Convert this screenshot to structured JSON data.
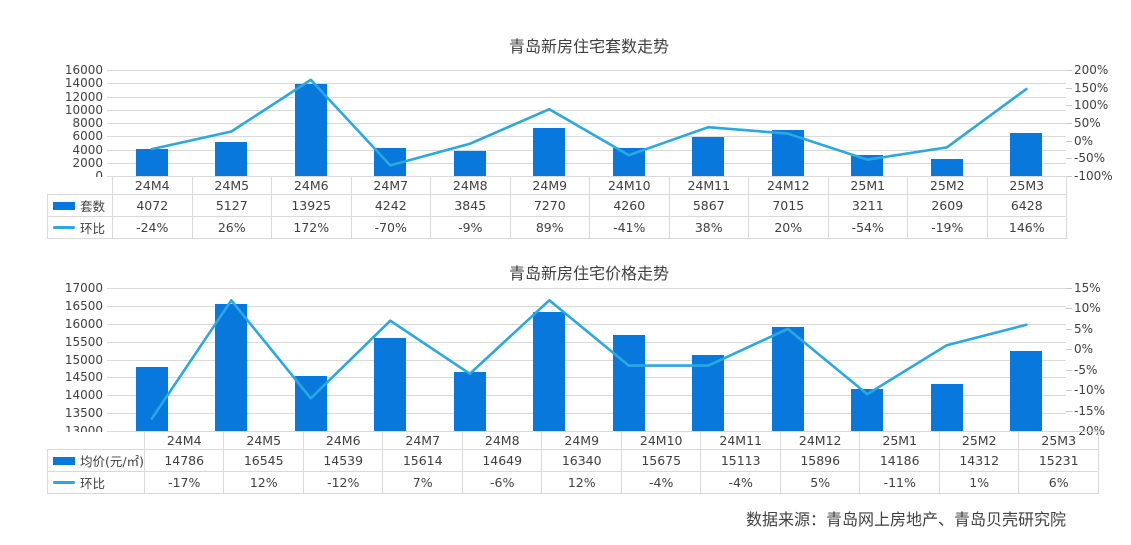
{
  "page": {
    "background": "#ffffff"
  },
  "colors": {
    "bar": "#0878DC",
    "line": "#29A8E2",
    "text": "#404040",
    "grid": "#D9D9D9"
  },
  "footer": {
    "source_text": "数据来源：青岛网上房地产、青岛贝壳研究院"
  },
  "chart_data": [
    {
      "type": "bar",
      "title": "青岛新房住宅套数走势",
      "categories": [
        "24M4",
        "24M5",
        "24M6",
        "24M7",
        "24M8",
        "24M9",
        "24M10",
        "24M11",
        "24M12",
        "25M1",
        "25M2",
        "25M3"
      ],
      "series": [
        {
          "name": "套数",
          "kind": "bar",
          "axis": "left",
          "values": [
            4072,
            5127,
            13925,
            4242,
            3845,
            7270,
            4260,
            5867,
            7015,
            3211,
            2609,
            6428
          ],
          "labels": [
            "4072",
            "5127",
            "13925",
            "4242",
            "3845",
            "7270",
            "4260",
            "5867",
            "7015",
            "3211",
            "2609",
            "6428"
          ]
        },
        {
          "name": "环比",
          "kind": "line",
          "axis": "right",
          "values": [
            -24,
            26,
            172,
            -70,
            -9,
            89,
            -41,
            38,
            20,
            -54,
            -19,
            146
          ],
          "labels": [
            "-24%",
            "26%",
            "172%",
            "-70%",
            "-9%",
            "89%",
            "-41%",
            "38%",
            "20%",
            "-54%",
            "-19%",
            "146%"
          ]
        }
      ],
      "left_axis": {
        "min": 0,
        "max": 16000,
        "step": 2000,
        "ticks": [
          "16000",
          "14000",
          "12000",
          "10000",
          "8000",
          "6000",
          "4000",
          "2000",
          "0"
        ]
      },
      "right_axis": {
        "min": -100,
        "max": 200,
        "step": 50,
        "ticks": [
          "200%",
          "150%",
          "100%",
          "50%",
          "0%",
          "-50%",
          "-100%"
        ]
      },
      "grid": true,
      "legend_position": "table-left"
    },
    {
      "type": "bar",
      "title": "青岛新房住宅价格走势",
      "categories": [
        "24M4",
        "24M5",
        "24M6",
        "24M7",
        "24M8",
        "24M9",
        "24M10",
        "24M11",
        "24M12",
        "25M1",
        "25M2",
        "25M3"
      ],
      "series": [
        {
          "name": "均价(元/㎡)",
          "kind": "bar",
          "axis": "left",
          "values": [
            14786,
            16545,
            14539,
            15614,
            14649,
            16340,
            15675,
            15113,
            15896,
            14186,
            14312,
            15231
          ],
          "labels": [
            "14786",
            "16545",
            "14539",
            "15614",
            "14649",
            "16340",
            "15675",
            "15113",
            "15896",
            "14186",
            "14312",
            "15231"
          ]
        },
        {
          "name": "环比",
          "kind": "line",
          "axis": "right",
          "values": [
            -17,
            12,
            -12,
            7,
            -6,
            12,
            -4,
            -4,
            5,
            -11,
            1,
            6
          ],
          "labels": [
            "-17%",
            "12%",
            "-12%",
            "7%",
            "-6%",
            "12%",
            "-4%",
            "-4%",
            "5%",
            "-11%",
            "1%",
            "6%"
          ]
        }
      ],
      "left_axis": {
        "min": 13000,
        "max": 17000,
        "step": 500,
        "ticks": [
          "17000",
          "16500",
          "16000",
          "15500",
          "15000",
          "14500",
          "14000",
          "13500",
          "13000"
        ]
      },
      "right_axis": {
        "min": -20,
        "max": 15,
        "step": 5,
        "ticks": [
          "15%",
          "10%",
          "5%",
          "0%",
          "-5%",
          "-10%",
          "-15%",
          "-20%"
        ]
      },
      "grid": true,
      "legend_position": "table-left"
    }
  ]
}
